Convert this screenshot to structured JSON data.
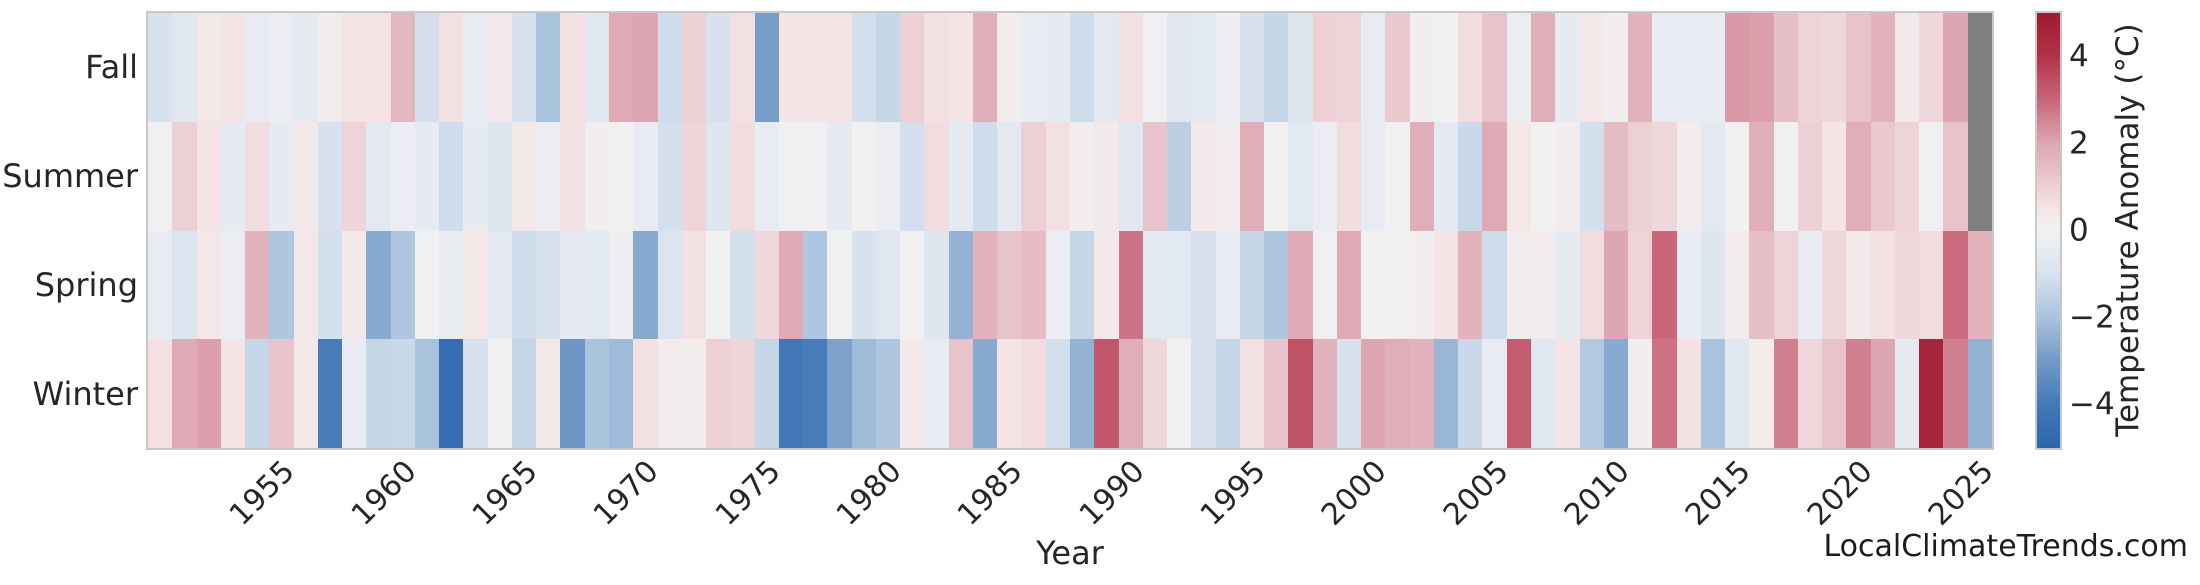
{
  "figure": {
    "xlabel": "Year",
    "watermark": "LocalClimateTrends.com",
    "x_tick_years": [
      1955,
      1960,
      1965,
      1970,
      1975,
      1980,
      1985,
      1990,
      1995,
      2000,
      2005,
      2010,
      2015,
      2020,
      2025
    ],
    "colorbar": {
      "label": "Temperature Anomaly (°C)",
      "tick_labels": [
        "4",
        "2",
        "0",
        "−2",
        "−4"
      ],
      "tick_values": [
        4,
        2,
        0,
        -2,
        -4
      ],
      "vmin": -5,
      "vmax": 5,
      "missing_color": "#7f7f7f",
      "stops": [
        [
          -5,
          "#2a66ac"
        ],
        [
          -4,
          "#4379b7"
        ],
        [
          -3,
          "#7399c7"
        ],
        [
          -2,
          "#a9c3dd"
        ],
        [
          -1,
          "#d8e2ee"
        ],
        [
          -0.5,
          "#e6ebf2"
        ],
        [
          0,
          "#f2f1f2"
        ],
        [
          0.5,
          "#f4e4e5"
        ],
        [
          1,
          "#ecd0d5"
        ],
        [
          2,
          "#dda6b2"
        ],
        [
          3,
          "#c9667a"
        ],
        [
          4,
          "#b23348"
        ],
        [
          5,
          "#9e1a30"
        ]
      ]
    }
  },
  "chart_data": {
    "type": "heatmap",
    "xlabel": "Year",
    "ylabel": "",
    "legend_label": "Temperature Anomaly (°C)",
    "x_range": [
      1950,
      2025
    ],
    "x": [
      1950,
      1951,
      1952,
      1953,
      1954,
      1955,
      1956,
      1957,
      1958,
      1959,
      1960,
      1961,
      1962,
      1963,
      1964,
      1965,
      1966,
      1967,
      1968,
      1969,
      1970,
      1971,
      1972,
      1973,
      1974,
      1975,
      1976,
      1977,
      1978,
      1979,
      1980,
      1981,
      1982,
      1983,
      1984,
      1985,
      1986,
      1987,
      1988,
      1989,
      1990,
      1991,
      1992,
      1993,
      1994,
      1995,
      1996,
      1997,
      1998,
      1999,
      2000,
      2001,
      2002,
      2003,
      2004,
      2005,
      2006,
      2007,
      2008,
      2009,
      2010,
      2011,
      2012,
      2013,
      2014,
      2015,
      2016,
      2017,
      2018,
      2019,
      2020,
      2021,
      2022,
      2023,
      2024,
      2025
    ],
    "rows": [
      {
        "name": "Fall",
        "values": [
          -1.0,
          -0.7,
          0.4,
          0.5,
          -0.4,
          -0.3,
          -0.5,
          0.2,
          0.5,
          0.5,
          1.6,
          -1.1,
          0.6,
          -0.4,
          0.3,
          -1.0,
          -2.0,
          0.6,
          -0.7,
          1.9,
          2.0,
          -1.2,
          1.0,
          -1.0,
          0.6,
          -2.9,
          0.5,
          0.5,
          0.5,
          -1.1,
          -1.4,
          1.0,
          0.6,
          0.5,
          1.8,
          0.2,
          -0.4,
          -0.5,
          -1.2,
          -0.6,
          0.6,
          -0.1,
          -0.7,
          -0.6,
          -0.2,
          -1.0,
          -1.4,
          -0.8,
          1.0,
          0.9,
          -0.4,
          1.2,
          0.1,
          0.0,
          0.7,
          1.3,
          -0.3,
          1.8,
          -0.5,
          0.4,
          0.1,
          1.7,
          -0.4,
          -0.4,
          -0.4,
          2.2,
          2.1,
          1.4,
          0.9,
          0.8,
          1.3,
          1.7,
          0.3,
          0.8,
          2.0,
          null
        ]
      },
      {
        "name": "Summer",
        "values": [
          -0.1,
          1.0,
          0.5,
          -0.5,
          0.7,
          -0.5,
          0.3,
          -1.0,
          0.9,
          -0.6,
          -0.3,
          -0.5,
          -1.2,
          -0.5,
          -0.8,
          0.4,
          -0.3,
          0.6,
          0.1,
          0.0,
          -0.4,
          -1.1,
          0.9,
          -0.8,
          0.7,
          -0.4,
          -0.1,
          -0.1,
          -0.5,
          0.0,
          -0.3,
          -1.1,
          0.7,
          -0.5,
          -1.2,
          -0.6,
          1.0,
          0.6,
          0.1,
          0.3,
          -0.7,
          1.3,
          -1.6,
          0.3,
          0.1,
          1.8,
          0.0,
          -0.6,
          -0.3,
          0.7,
          -0.4,
          -0.1,
          1.8,
          -0.6,
          -1.3,
          1.9,
          0.4,
          0.0,
          0.1,
          -1.1,
          1.5,
          1.0,
          0.8,
          0.2,
          -0.6,
          0.0,
          1.8,
          0.0,
          1.0,
          0.5,
          1.8,
          1.2,
          0.9,
          -0.1,
          1.3,
          null
        ]
      },
      {
        "name": "Spring",
        "values": [
          -0.4,
          -0.9,
          0.4,
          -0.3,
          1.7,
          -1.9,
          0.4,
          -1.1,
          0.4,
          -2.6,
          -1.9,
          -0.1,
          -0.4,
          0.4,
          -0.6,
          -1.2,
          -1.0,
          -0.5,
          -0.6,
          -0.2,
          -2.6,
          -0.9,
          0.6,
          0.0,
          -1.1,
          0.8,
          1.9,
          -1.9,
          0.0,
          -1.0,
          -0.7,
          -0.1,
          -0.8,
          -2.4,
          1.7,
          1.3,
          1.5,
          -0.3,
          -1.4,
          0.3,
          2.8,
          -0.6,
          -0.6,
          -1.0,
          -0.4,
          -1.4,
          -1.9,
          1.9,
          -0.1,
          1.9,
          0.0,
          0.0,
          0.1,
          0.5,
          1.7,
          -1.2,
          0.2,
          0.2,
          -0.5,
          0.7,
          2.0,
          0.9,
          3.0,
          -0.4,
          -0.8,
          0.2,
          1.4,
          0.9,
          -0.4,
          0.8,
          0.3,
          0.6,
          0.8,
          0.7,
          2.9,
          1.7
        ]
      },
      {
        "name": "Winter",
        "values": [
          0.6,
          1.9,
          2.1,
          0.5,
          -1.4,
          1.3,
          0.4,
          -3.9,
          -0.4,
          -1.4,
          -1.3,
          -2.0,
          -4.6,
          -1.0,
          0.0,
          -1.4,
          0.4,
          -3.1,
          -2.0,
          -2.2,
          0.6,
          0.2,
          0.2,
          1.0,
          0.9,
          -1.4,
          -4.1,
          -3.9,
          -2.8,
          -2.2,
          -1.9,
          0.3,
          -0.4,
          1.3,
          -2.6,
          0.5,
          0.7,
          -1.1,
          -2.4,
          3.3,
          1.8,
          0.8,
          0.0,
          -1.0,
          -1.4,
          0.6,
          1.3,
          3.4,
          1.7,
          -1.0,
          2.0,
          1.8,
          1.7,
          -2.3,
          -1.3,
          -0.4,
          3.2,
          -0.7,
          0.5,
          -1.8,
          -2.6,
          0.1,
          2.8,
          0.6,
          -2.0,
          -0.7,
          0.2,
          2.6,
          0.8,
          1.3,
          2.6,
          2.0,
          -0.5,
          4.6,
          2.6,
          -2.4
        ]
      }
    ],
    "missing_cells_note": "2025 Fall and 2025 Summer shown gray (no data)",
    "grid": false,
    "legend_position": "right colorbar"
  }
}
